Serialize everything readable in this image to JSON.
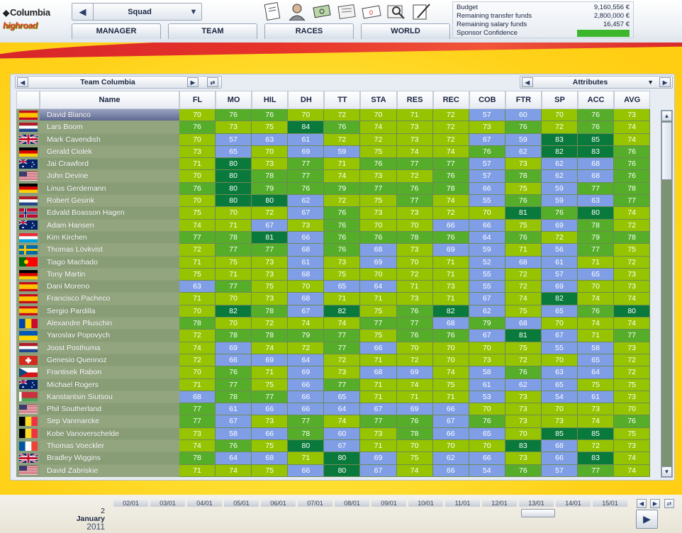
{
  "app": {
    "brand": "Columbia",
    "sub": "highroad"
  },
  "navigator": {
    "title": "Squad"
  },
  "menu_tabs": [
    "MANAGER",
    "TEAM",
    "RACES",
    "WORLD"
  ],
  "toolbar_icons": [
    "notes-icon",
    "manager-icon",
    "money-icon",
    "newspaper-icon",
    "mail-icon",
    "search-icon",
    "contract-icon"
  ],
  "funds": {
    "budget_label": "Budget",
    "budget": "9,160,556 €",
    "transfer_label": "Remaining transfer funds",
    "transfer": "2,800,000 €",
    "salary_label": "Remaining salary funds",
    "salary": "16,457 €",
    "sponsor_label": "Sponsor Confidence",
    "sponsor_level": 1.0
  },
  "panel": {
    "team": "Team Columbia",
    "view": "Attributes"
  },
  "columns": [
    "Name",
    "FL",
    "MO",
    "HIL",
    "DH",
    "TT",
    "STA",
    "RES",
    "REC",
    "COB",
    "FTR",
    "SP",
    "ACC",
    "AVG"
  ],
  "riders": [
    {
      "name": "David Blanco",
      "flag": "es",
      "v": [
        70,
        76,
        76,
        70,
        72,
        70,
        71,
        72,
        57,
        60,
        70,
        76,
        73
      ]
    },
    {
      "name": "Lars Boom",
      "flag": "nl",
      "v": [
        76,
        73,
        75,
        84,
        76,
        74,
        73,
        72,
        73,
        76,
        72,
        76,
        74
      ]
    },
    {
      "name": "Mark Cavendish",
      "flag": "gb",
      "v": [
        70,
        57,
        63,
        61,
        72,
        72,
        73,
        72,
        67,
        59,
        83,
        85,
        74
      ]
    },
    {
      "name": "Gerald Ciolek",
      "flag": "de",
      "v": [
        73,
        65,
        70,
        69,
        59,
        75,
        74,
        74,
        76,
        62,
        82,
        83,
        76
      ]
    },
    {
      "name": "Jai Crawford",
      "flag": "au",
      "v": [
        71,
        80,
        73,
        77,
        71,
        76,
        77,
        77,
        57,
        73,
        62,
        68,
        76
      ]
    },
    {
      "name": "John Devine",
      "flag": "us",
      "v": [
        70,
        80,
        78,
        77,
        74,
        73,
        72,
        76,
        57,
        78,
        62,
        68,
        76
      ]
    },
    {
      "name": "Linus Gerdemann",
      "flag": "de",
      "v": [
        76,
        80,
        79,
        76,
        79,
        77,
        76,
        78,
        66,
        75,
        59,
        77,
        78
      ]
    },
    {
      "name": "Robert Gesink",
      "flag": "nl",
      "v": [
        70,
        80,
        80,
        62,
        72,
        75,
        77,
        74,
        55,
        76,
        59,
        63,
        77
      ]
    },
    {
      "name": "Edvald Boasson Hagen",
      "flag": "no",
      "v": [
        75,
        70,
        72,
        67,
        76,
        73,
        73,
        72,
        70,
        81,
        76,
        80,
        74
      ]
    },
    {
      "name": "Adam Hansen",
      "flag": "au",
      "v": [
        74,
        71,
        67,
        73,
        76,
        70,
        70,
        66,
        66,
        75,
        69,
        78,
        72
      ]
    },
    {
      "name": "Kim Kirchen",
      "flag": "lu",
      "v": [
        77,
        78,
        81,
        66,
        76,
        76,
        78,
        76,
        64,
        76,
        72,
        79,
        78
      ]
    },
    {
      "name": "Thomas Lövkvist",
      "flag": "se",
      "v": [
        72,
        77,
        77,
        68,
        76,
        68,
        73,
        69,
        59,
        71,
        56,
        77,
        75
      ]
    },
    {
      "name": "Tiago Machado",
      "flag": "pt",
      "v": [
        71,
        75,
        73,
        61,
        73,
        69,
        70,
        71,
        52,
        68,
        61,
        71,
        72
      ]
    },
    {
      "name": "Tony Martin",
      "flag": "de",
      "v": [
        75,
        71,
        73,
        68,
        75,
        70,
        72,
        71,
        55,
        72,
        57,
        65,
        73
      ]
    },
    {
      "name": "Dani Moreno",
      "flag": "es",
      "v": [
        63,
        77,
        75,
        70,
        65,
        64,
        71,
        73,
        55,
        72,
        69,
        70,
        73
      ]
    },
    {
      "name": "Francisco Pacheco",
      "flag": "es",
      "v": [
        71,
        70,
        73,
        68,
        71,
        71,
        73,
        71,
        67,
        74,
        82,
        74,
        74
      ]
    },
    {
      "name": "Sergio Pardilla",
      "flag": "es",
      "v": [
        70,
        82,
        78,
        67,
        82,
        75,
        76,
        82,
        62,
        75,
        65,
        76,
        80
      ]
    },
    {
      "name": "Alexandre Pliuschin",
      "flag": "md",
      "v": [
        78,
        70,
        72,
        74,
        74,
        77,
        77,
        68,
        79,
        68,
        70,
        74,
        74
      ]
    },
    {
      "name": "Yaroslav Popovych",
      "flag": "ua",
      "v": [
        72,
        78,
        78,
        79,
        77,
        75,
        76,
        76,
        67,
        81,
        67,
        71,
        77
      ]
    },
    {
      "name": "Joost Posthuma",
      "flag": "nl",
      "v": [
        74,
        69,
        74,
        72,
        77,
        66,
        70,
        70,
        70,
        75,
        55,
        58,
        73
      ]
    },
    {
      "name": "Genesio Quennoz",
      "flag": "ch",
      "v": [
        72,
        66,
        69,
        64,
        72,
        71,
        72,
        70,
        73,
        72,
        70,
        65,
        72
      ]
    },
    {
      "name": "Frantisek Rabon",
      "flag": "cz",
      "v": [
        70,
        76,
        71,
        69,
        73,
        68,
        69,
        74,
        58,
        76,
        63,
        64,
        72
      ]
    },
    {
      "name": "Michael Rogers",
      "flag": "au",
      "v": [
        71,
        77,
        75,
        66,
        77,
        71,
        74,
        75,
        61,
        62,
        65,
        75,
        75
      ]
    },
    {
      "name": "Kanstantsin Siutsou",
      "flag": "by",
      "v": [
        68,
        78,
        77,
        66,
        65,
        71,
        71,
        71,
        53,
        73,
        54,
        61,
        73
      ]
    },
    {
      "name": "Phil Southerland",
      "flag": "us",
      "v": [
        77,
        61,
        66,
        66,
        64,
        67,
        69,
        66,
        70,
        73,
        70,
        73,
        70
      ]
    },
    {
      "name": "Sep Vanmarcke",
      "flag": "be",
      "v": [
        77,
        67,
        73,
        77,
        74,
        77,
        76,
        67,
        76,
        73,
        73,
        74,
        76
      ]
    },
    {
      "name": "Kobe Vanoverschelde",
      "flag": "be",
      "v": [
        73,
        58,
        66,
        78,
        60,
        73,
        78,
        66,
        65,
        70,
        85,
        85,
        75
      ]
    },
    {
      "name": "Thomas Voeckler",
      "flag": "fr",
      "v": [
        74,
        76,
        75,
        80,
        67,
        71,
        70,
        70,
        70,
        83,
        68,
        72,
        73
      ]
    },
    {
      "name": "Bradley Wiggins",
      "flag": "gb",
      "v": [
        78,
        64,
        68,
        71,
        80,
        69,
        75,
        62,
        66,
        73,
        66,
        83,
        74
      ]
    },
    {
      "name": "David Zabriskie",
      "flag": "us",
      "v": [
        71,
        74,
        75,
        66,
        80,
        67,
        74,
        66,
        54,
        76,
        57,
        77,
        74
      ]
    }
  ],
  "calendar": {
    "day": "2",
    "month": "January",
    "year": "2011",
    "days": [
      "02/01",
      "03/01",
      "04/01",
      "05/01",
      "06/01",
      "07/01",
      "08/01",
      "09/01",
      "10/01",
      "11/01",
      "12/01",
      "13/01",
      "14/01",
      "15/01"
    ]
  },
  "colors": {
    "low": "#7f9ee6",
    "mid": "#96c400",
    "good": "#55ad2a",
    "great": "#0a7a3c"
  }
}
